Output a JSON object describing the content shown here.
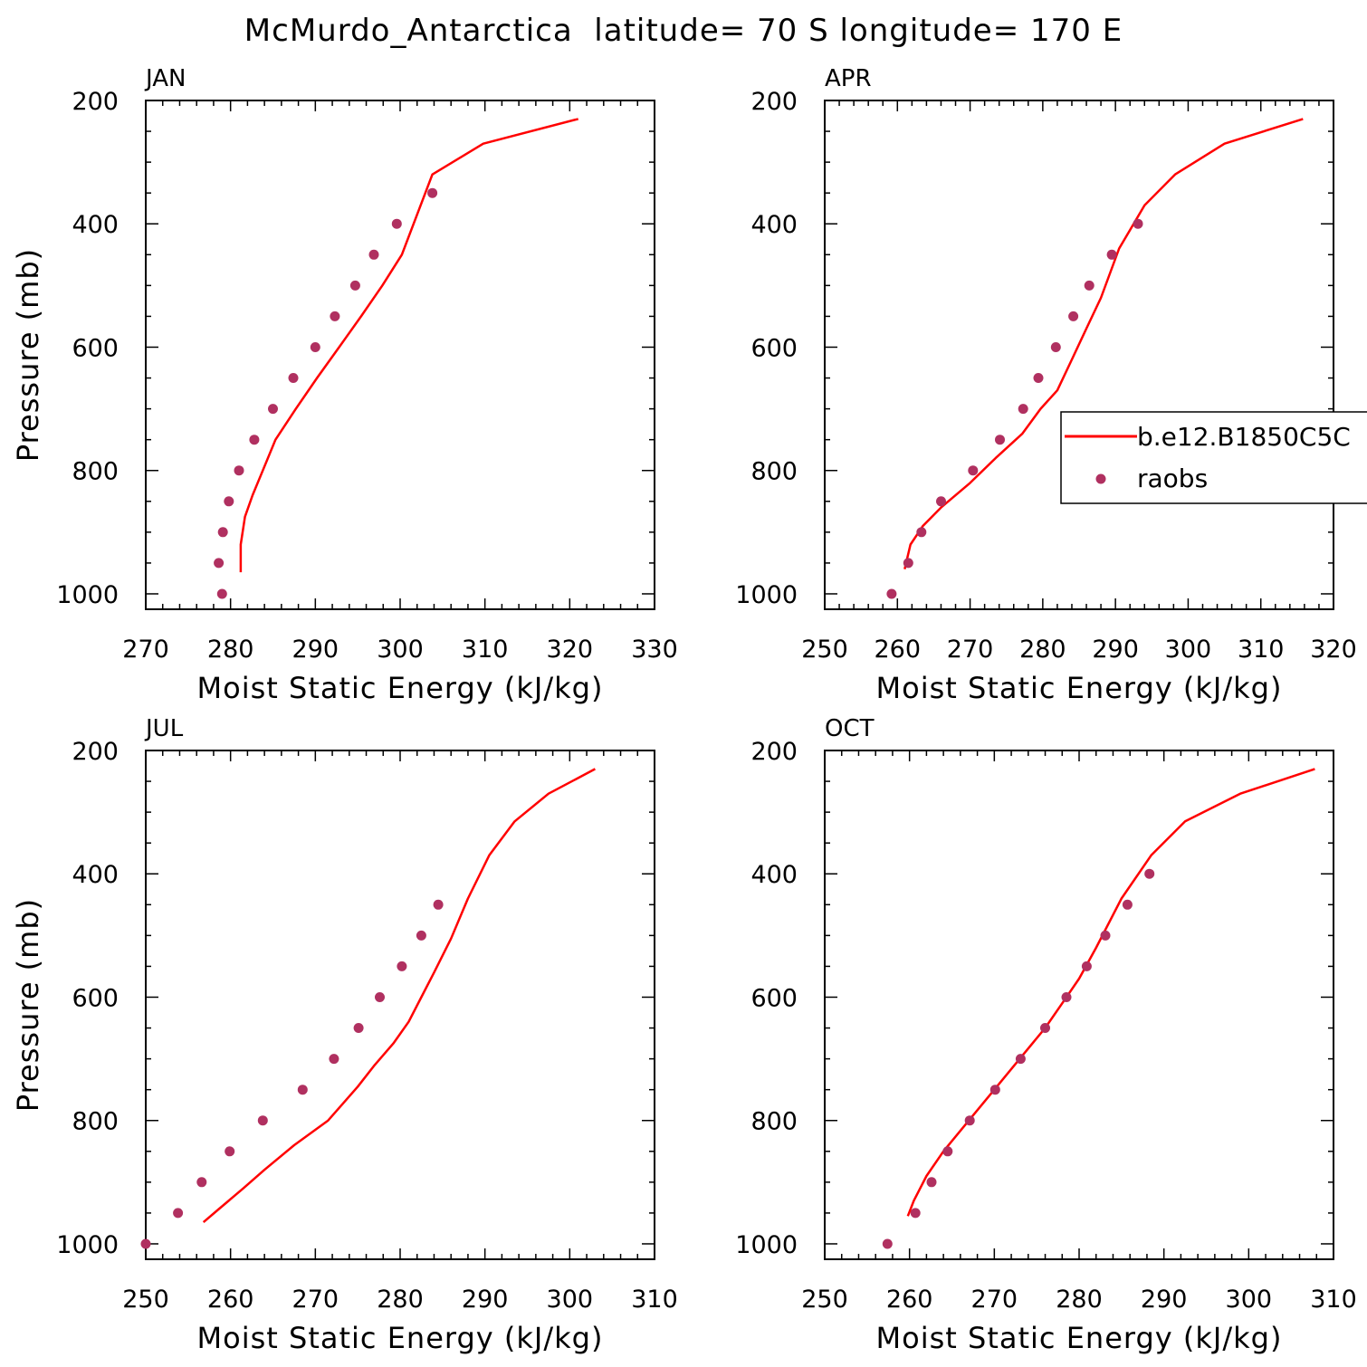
{
  "figure": {
    "title": "McMurdo_Antarctica  latitude= 70 S longitude= 170 E",
    "colors": {
      "model": "#ff0000",
      "obs": "#b03060",
      "axis": "#000000"
    }
  },
  "legend": {
    "panel": "APR",
    "entries": [
      {
        "label": "b.e12.B1850C5C",
        "style": "line"
      },
      {
        "label": "raobs",
        "style": "marker"
      }
    ]
  },
  "chart_data": [
    {
      "type": "line",
      "panel": "JAN",
      "title": "JAN",
      "xlabel": "Moist Static Energy (kJ/kg)",
      "ylabel": "Pressure (mb)",
      "xlim": [
        270,
        330
      ],
      "ylim": [
        1025,
        200
      ],
      "y_reversed": true,
      "xticks": [
        270,
        280,
        290,
        300,
        310,
        320,
        330
      ],
      "yticks": [
        200,
        400,
        600,
        800,
        1000
      ],
      "series": [
        {
          "name": "b.e12.B1850C5C",
          "style": "line",
          "x": [
            281.2,
            281.2,
            281.7,
            282.6,
            283.8,
            285.3,
            287.7,
            290.2,
            292.8,
            295.4,
            297.9,
            300.2,
            303.8,
            309.8,
            321.0
          ],
          "y": [
            965,
            920,
            875,
            840,
            800,
            750,
            700,
            650,
            600,
            550,
            500,
            450,
            320,
            270,
            230
          ]
        },
        {
          "name": "raobs",
          "style": "marker",
          "x": [
            279.0,
            278.6,
            279.1,
            279.8,
            281.0,
            282.8,
            285.0,
            287.4,
            290.0,
            292.3,
            294.7,
            296.9,
            299.6,
            303.8
          ],
          "y": [
            1000,
            950,
            900,
            850,
            800,
            750,
            700,
            650,
            600,
            550,
            500,
            450,
            400,
            350
          ]
        }
      ]
    },
    {
      "type": "line",
      "panel": "APR",
      "title": "APR",
      "xlabel": "Moist Static Energy (kJ/kg)",
      "ylabel": "",
      "xlim": [
        250,
        320
      ],
      "ylim": [
        1025,
        200
      ],
      "y_reversed": true,
      "xticks": [
        250,
        260,
        270,
        280,
        290,
        300,
        310,
        320
      ],
      "yticks": [
        200,
        400,
        600,
        800,
        1000
      ],
      "series": [
        {
          "name": "b.e12.B1850C5C",
          "style": "line",
          "x": [
            261.0,
            261.8,
            263.5,
            266.0,
            270.0,
            273.5,
            277.2,
            279.7,
            282.0,
            284.0,
            286.0,
            288.0,
            290.5,
            294.0,
            298.2,
            305.0,
            315.8
          ],
          "y": [
            960,
            920,
            890,
            860,
            820,
            780,
            740,
            700,
            670,
            620,
            570,
            520,
            440,
            370,
            320,
            270,
            230
          ]
        },
        {
          "name": "raobs",
          "style": "marker",
          "x": [
            259.2,
            261.5,
            263.3,
            266.0,
            270.4,
            274.1,
            277.3,
            279.4,
            281.8,
            284.2,
            286.4,
            289.5,
            293.1
          ],
          "y": [
            1000,
            950,
            900,
            850,
            800,
            750,
            700,
            650,
            600,
            550,
            500,
            450,
            400
          ]
        }
      ]
    },
    {
      "type": "line",
      "panel": "JUL",
      "title": "JUL",
      "xlabel": "Moist Static Energy (kJ/kg)",
      "ylabel": "Pressure (mb)",
      "xlim": [
        250,
        310
      ],
      "ylim": [
        1025,
        200
      ],
      "y_reversed": true,
      "xticks": [
        250,
        260,
        270,
        280,
        290,
        300,
        310
      ],
      "yticks": [
        200,
        400,
        600,
        800,
        1000
      ],
      "series": [
        {
          "name": "b.e12.B1850C5C",
          "style": "line",
          "x": [
            256.8,
            258.5,
            261.5,
            264.0,
            267.5,
            271.5,
            275.0,
            277.0,
            279.2,
            281.0,
            282.5,
            284.0,
            286.0,
            288.0,
            290.5,
            293.5,
            297.5,
            303.0
          ],
          "y": [
            965,
            945,
            910,
            880,
            840,
            800,
            745,
            710,
            675,
            640,
            600,
            560,
            505,
            440,
            370,
            315,
            270,
            230
          ]
        },
        {
          "name": "raobs",
          "style": "marker",
          "x": [
            250.0,
            253.8,
            256.6,
            259.9,
            263.8,
            268.5,
            272.2,
            275.1,
            277.6,
            280.2,
            282.5,
            284.5
          ],
          "y": [
            1000,
            950,
            900,
            850,
            800,
            750,
            700,
            650,
            600,
            550,
            500,
            450
          ]
        }
      ]
    },
    {
      "type": "line",
      "panel": "OCT",
      "title": "OCT",
      "xlabel": "Moist Static Energy (kJ/kg)",
      "ylabel": "",
      "xlim": [
        250,
        310
      ],
      "ylim": [
        1025,
        200
      ],
      "y_reversed": true,
      "xticks": [
        250,
        260,
        270,
        280,
        290,
        300,
        310
      ],
      "yticks": [
        200,
        400,
        600,
        800,
        1000
      ],
      "series": [
        {
          "name": "b.e12.B1850C5C",
          "style": "line",
          "x": [
            259.8,
            260.5,
            262.0,
            264.0,
            267.0,
            270.0,
            273.0,
            276.0,
            278.0,
            280.0,
            282.0,
            285.0,
            288.5,
            292.5,
            299.0,
            307.8
          ],
          "y": [
            955,
            930,
            890,
            850,
            800,
            750,
            700,
            650,
            610,
            570,
            520,
            440,
            370,
            315,
            270,
            230
          ]
        },
        {
          "name": "raobs",
          "style": "marker",
          "x": [
            257.4,
            260.7,
            262.6,
            264.5,
            267.1,
            270.1,
            273.1,
            276.0,
            278.5,
            280.9,
            283.1,
            285.7,
            288.3
          ],
          "y": [
            1000,
            950,
            900,
            850,
            800,
            750,
            700,
            650,
            600,
            550,
            500,
            450,
            400
          ]
        }
      ]
    }
  ]
}
